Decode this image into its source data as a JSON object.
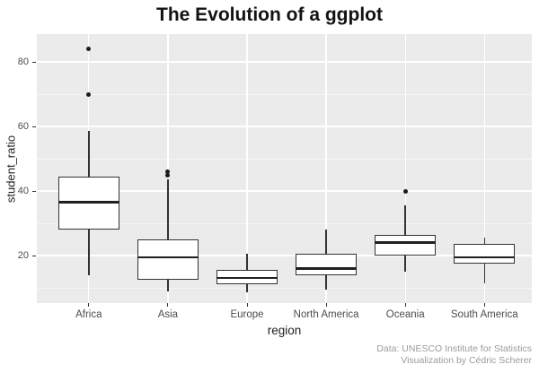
{
  "title": "The Evolution of a ggplot",
  "caption": {
    "line1": "Data: UNESCO Institute for Statistics",
    "line2": "Visualization by Cédric Scherer"
  },
  "chart_data": {
    "type": "boxplot",
    "title": "The Evolution of a ggplot",
    "xlabel": "region",
    "ylabel": "student_ratio",
    "categories": [
      "Africa",
      "Asia",
      "Europe",
      "North America",
      "Oceania",
      "South America"
    ],
    "series": [
      {
        "category": "Africa",
        "whisker_low": 14,
        "q1": 28,
        "median": 36.5,
        "q3": 44.5,
        "whisker_high": 58.5,
        "outliers": [
          70,
          84
        ]
      },
      {
        "category": "Asia",
        "whisker_low": 9,
        "q1": 12.5,
        "median": 19.5,
        "q3": 25,
        "whisker_high": 43.5,
        "outliers": [
          45,
          46
        ]
      },
      {
        "category": "Europe",
        "whisker_low": 8.5,
        "q1": 11,
        "median": 13,
        "q3": 15.5,
        "whisker_high": 20.5,
        "outliers": []
      },
      {
        "category": "North America",
        "whisker_low": 9.5,
        "q1": 14,
        "median": 16,
        "q3": 20.5,
        "whisker_high": 28,
        "outliers": []
      },
      {
        "category": "Oceania",
        "whisker_low": 15,
        "q1": 20,
        "median": 24,
        "q3": 26.5,
        "whisker_high": 35.5,
        "outliers": [
          40
        ]
      },
      {
        "category": "South America",
        "whisker_low": 11.5,
        "q1": 17.5,
        "median": 19.5,
        "q3": 23.5,
        "whisker_high": 25.5,
        "outliers": []
      }
    ],
    "y_ticks": [
      20,
      40,
      60,
      80
    ],
    "y_minor_gridlines": [
      10,
      30,
      50,
      70
    ],
    "ylim": [
      5.3,
      88.6
    ],
    "grid": true,
    "legend": "none",
    "colors": {
      "panel_background": "#ebebeb",
      "gridline": "#ffffff",
      "box_fill": "#ffffff",
      "box_stroke": "#333333",
      "outlier": "#1c1c1c",
      "title_text": "#121212",
      "axis_text": "#4d4d4d",
      "caption_text": "#9b9b9b"
    }
  }
}
